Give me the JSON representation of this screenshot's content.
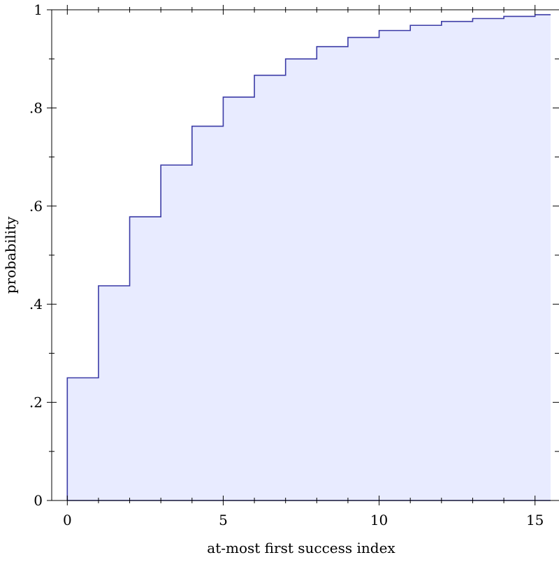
{
  "chart_data": {
    "type": "area",
    "subtype": "step-cdf",
    "title": "",
    "xlabel": "at-most first success index",
    "ylabel": "probability",
    "xlim": [
      -0.5,
      15.5
    ],
    "ylim": [
      0,
      1
    ],
    "x_ticks": [
      0,
      5,
      10,
      15
    ],
    "x_tick_labels": [
      "0",
      "5",
      "10",
      "15"
    ],
    "y_ticks": [
      0,
      0.2,
      0.4,
      0.6,
      0.8,
      1
    ],
    "y_tick_labels": [
      "0",
      ".2",
      ".4",
      ".6",
      ".8",
      "1"
    ],
    "grid": false,
    "x": [
      0,
      1,
      2,
      3,
      4,
      5,
      6,
      7,
      8,
      9,
      10,
      11,
      12,
      13,
      14,
      15
    ],
    "values": [
      0.25,
      0.4375,
      0.5781,
      0.6836,
      0.7627,
      0.822,
      0.8665,
      0.8999,
      0.9249,
      0.9437,
      0.9578,
      0.9683,
      0.9762,
      0.9822,
      0.9866,
      0.99
    ],
    "colors": {
      "line": "#3b3ba6",
      "fill": "#e8ebff",
      "axis": "#000000"
    }
  }
}
